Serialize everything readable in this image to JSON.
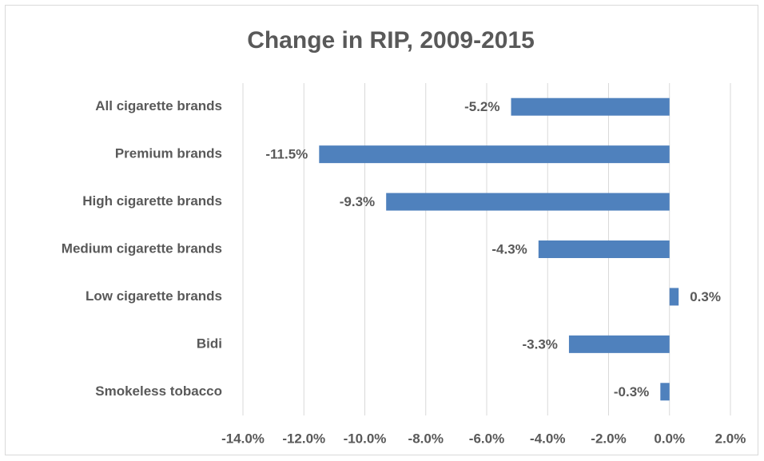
{
  "chart_data": {
    "type": "bar",
    "orientation": "horizontal",
    "title": "Change in RIP, 2009-2015",
    "categories": [
      "All cigarette brands",
      "Premium brands",
      "High cigarette brands",
      "Medium cigarette brands",
      "Low cigarette brands",
      "Bidi",
      "Smokeless tobacco"
    ],
    "values": [
      -5.2,
      -11.5,
      -9.3,
      -4.3,
      0.3,
      -3.3,
      -0.3
    ],
    "value_labels": [
      "-5.2%",
      "-11.5%",
      "-9.3%",
      "-4.3%",
      "0.3%",
      "-3.3%",
      "-0.3%"
    ],
    "color": "#4f81bd",
    "xlim": [
      -14,
      2
    ],
    "xticks": [
      {
        "value": -14,
        "label": "-14.0%"
      },
      {
        "value": -12,
        "label": "-12.0%"
      },
      {
        "value": -10,
        "label": "-10.0%"
      },
      {
        "value": -8,
        "label": "-8.0%"
      },
      {
        "value": -6,
        "label": "-6.0%"
      },
      {
        "value": -4,
        "label": "-4.0%"
      },
      {
        "value": -2,
        "label": "-2.0%"
      },
      {
        "value": 0,
        "label": "0.0%"
      },
      {
        "value": 2,
        "label": "2.0%"
      }
    ],
    "grid": true
  }
}
